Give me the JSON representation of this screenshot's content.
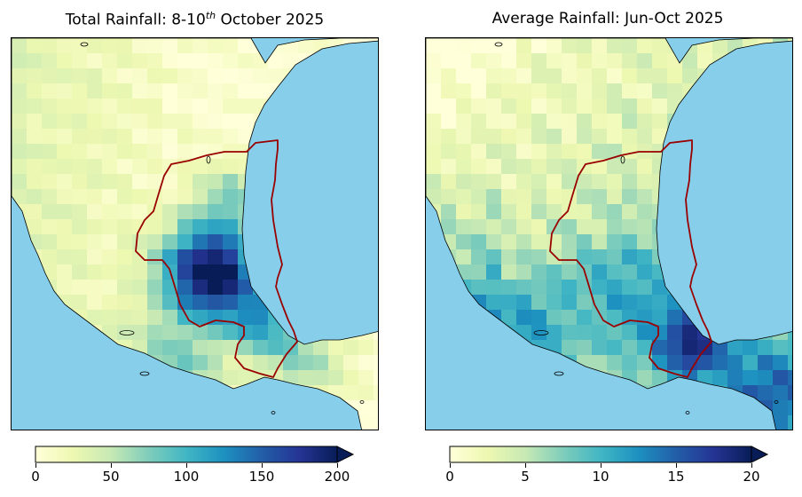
{
  "maps": [
    {
      "id": "total",
      "title_prefix": "Total Rainfall: 8-10",
      "title_sup": "th",
      "title_suffix": " October 2025",
      "colorbar": {
        "min": 0,
        "max": 200,
        "ticks": [
          "0",
          "50",
          "100",
          "150",
          "200"
        ],
        "extend": "max"
      },
      "hotspot_values": "heavy rainfall core over Veracruz/Puebla/Hidalgo region"
    },
    {
      "id": "average",
      "title": "Average Rainfall: Jun-Oct 2025",
      "colorbar": {
        "min": 0,
        "max": 20,
        "ticks": [
          "0",
          "5",
          "10",
          "15",
          "20"
        ],
        "extend": "max"
      }
    }
  ],
  "colors": {
    "ocean": "#87ceeb",
    "boundary": "#990000",
    "colormap": "YlGnBu",
    "low": "#ffffd9",
    "high": "#081d58"
  }
}
